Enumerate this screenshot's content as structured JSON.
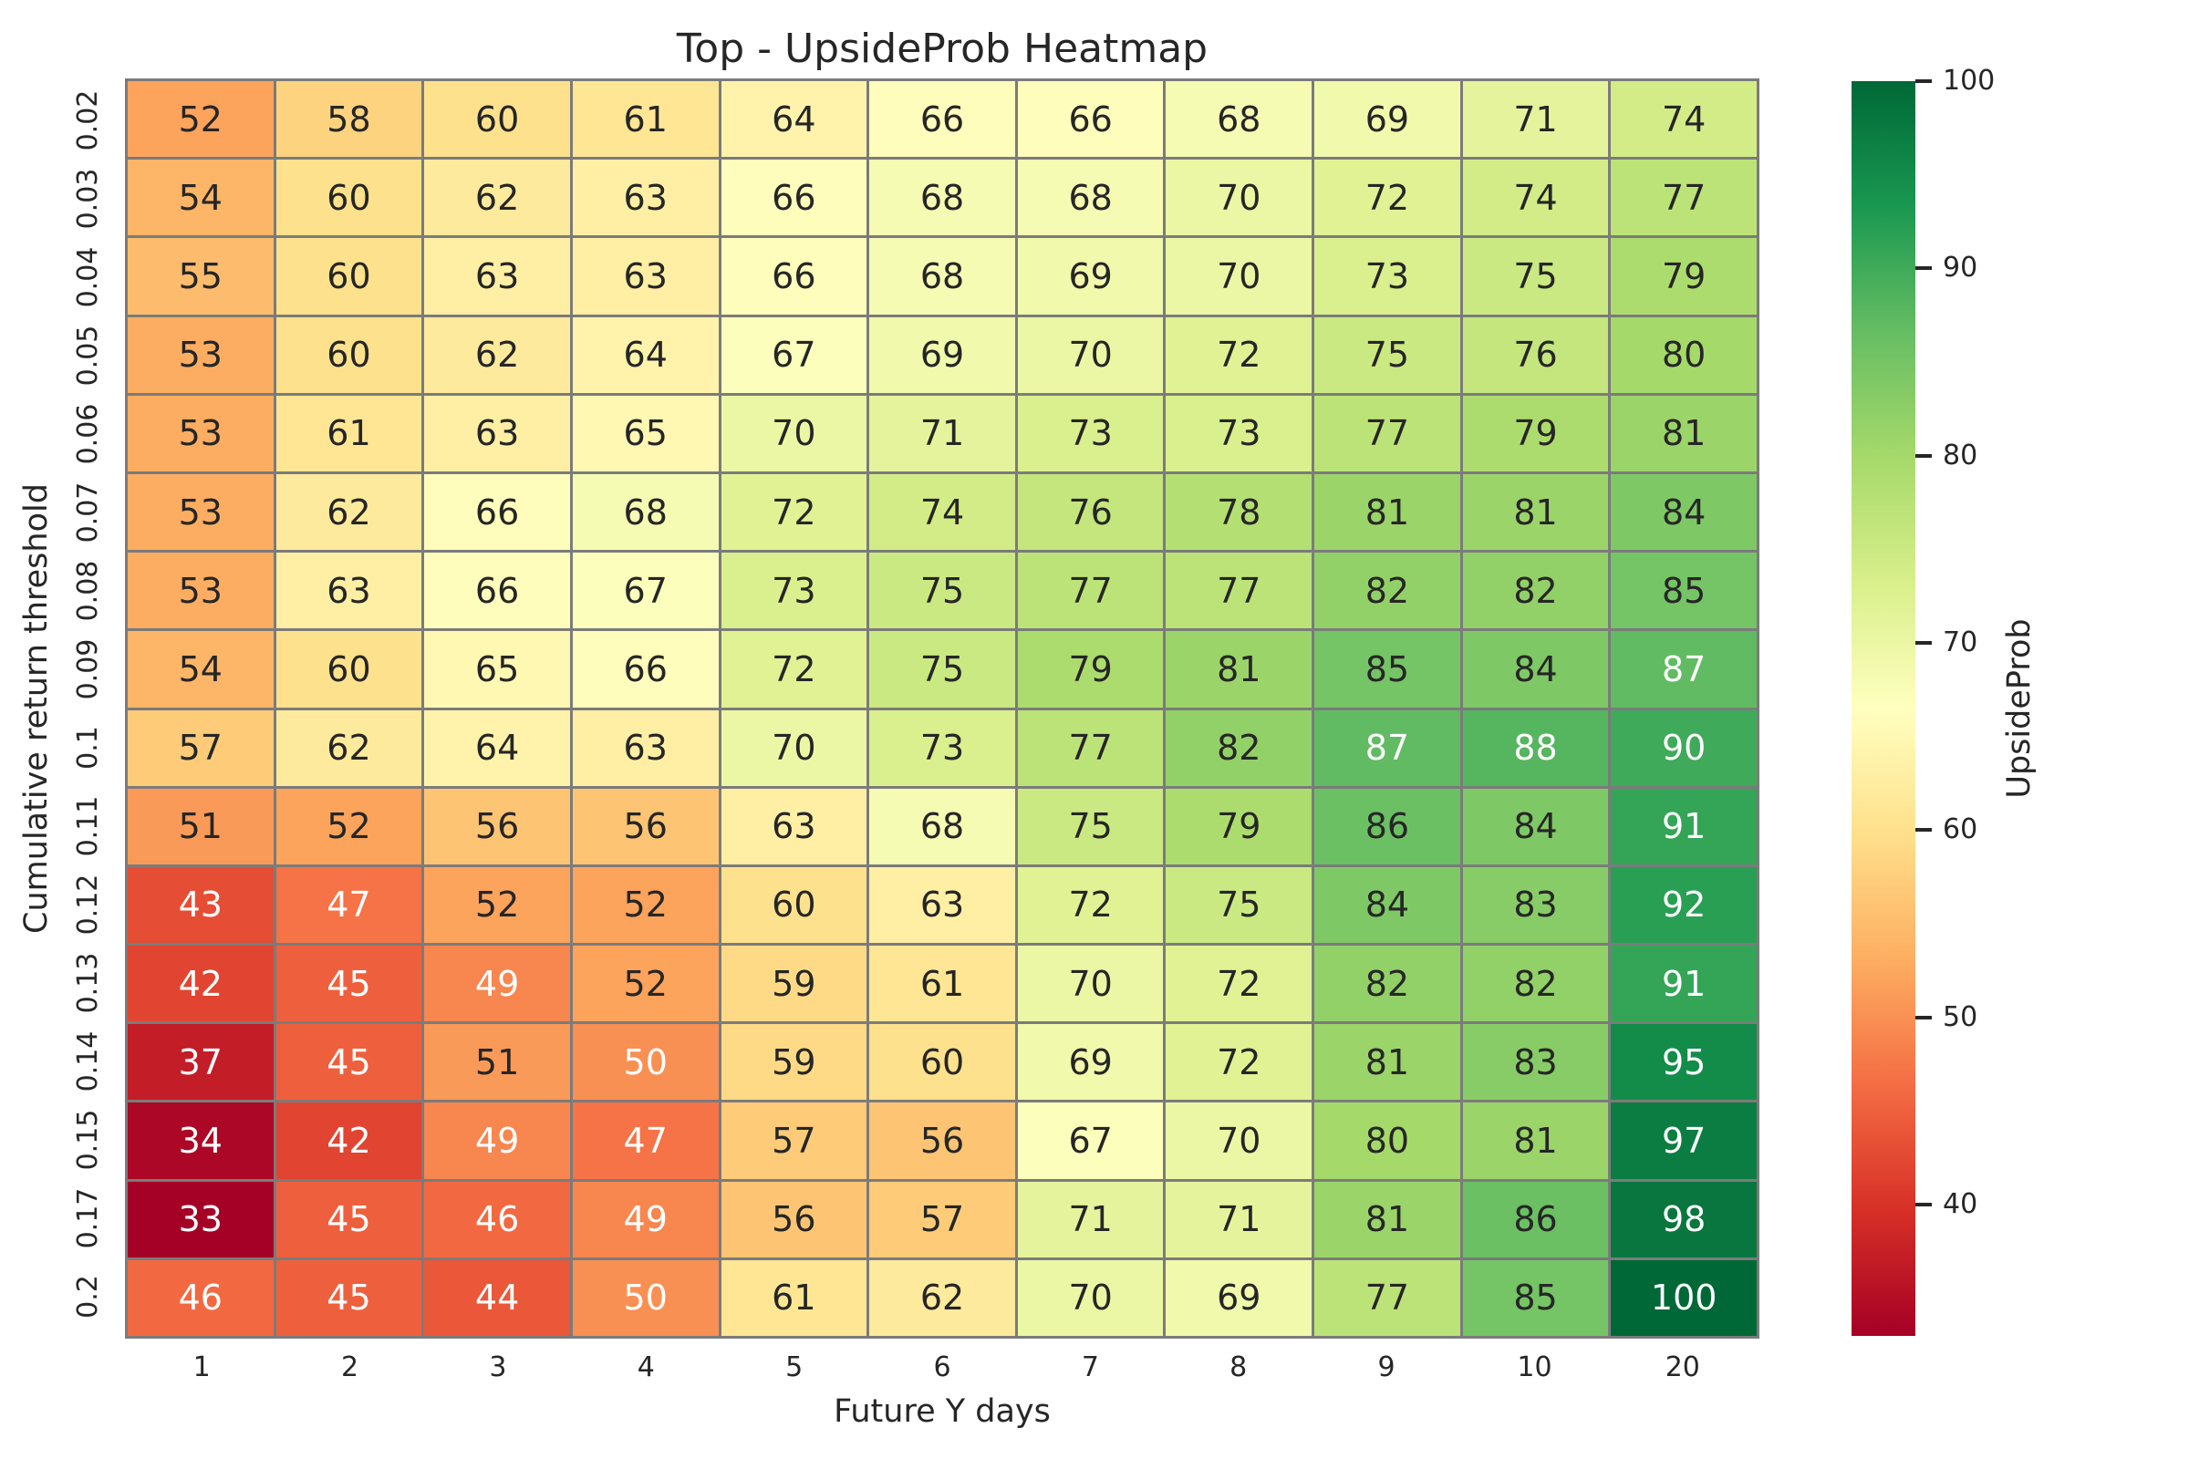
{
  "chart_data": {
    "type": "heatmap",
    "title": "Top - UpsideProb Heatmap",
    "xlabel": "Future Y days",
    "ylabel": "Cumulative return threshold",
    "x_categories": [
      "1",
      "2",
      "3",
      "4",
      "5",
      "6",
      "7",
      "8",
      "9",
      "10",
      "20"
    ],
    "y_categories": [
      "0.02",
      "0.03",
      "0.04",
      "0.05",
      "0.06",
      "0.07",
      "0.08",
      "0.09",
      "0.1",
      "0.11",
      "0.12",
      "0.13",
      "0.14",
      "0.15",
      "0.17",
      "0.2"
    ],
    "values": [
      [
        52,
        58,
        60,
        61,
        64,
        66,
        66,
        68,
        69,
        71,
        74
      ],
      [
        54,
        60,
        62,
        63,
        66,
        68,
        68,
        70,
        72,
        74,
        77
      ],
      [
        55,
        60,
        63,
        63,
        66,
        68,
        69,
        70,
        73,
        75,
        79
      ],
      [
        53,
        60,
        62,
        64,
        67,
        69,
        70,
        72,
        75,
        76,
        80
      ],
      [
        53,
        61,
        63,
        65,
        70,
        71,
        73,
        73,
        77,
        79,
        81
      ],
      [
        53,
        62,
        66,
        68,
        72,
        74,
        76,
        78,
        81,
        81,
        84
      ],
      [
        53,
        63,
        66,
        67,
        73,
        75,
        77,
        77,
        82,
        82,
        85
      ],
      [
        54,
        60,
        65,
        66,
        72,
        75,
        79,
        81,
        85,
        84,
        87
      ],
      [
        57,
        62,
        64,
        63,
        70,
        73,
        77,
        82,
        87,
        88,
        90
      ],
      [
        51,
        52,
        56,
        56,
        63,
        68,
        75,
        79,
        86,
        84,
        91
      ],
      [
        43,
        47,
        52,
        52,
        60,
        63,
        72,
        75,
        84,
        83,
        92
      ],
      [
        42,
        45,
        49,
        52,
        59,
        61,
        70,
        72,
        82,
        82,
        91
      ],
      [
        37,
        45,
        51,
        50,
        59,
        60,
        69,
        72,
        81,
        83,
        95
      ],
      [
        34,
        42,
        49,
        47,
        57,
        56,
        67,
        70,
        80,
        81,
        97
      ],
      [
        33,
        45,
        46,
        49,
        56,
        57,
        71,
        71,
        81,
        86,
        98
      ],
      [
        46,
        45,
        44,
        50,
        61,
        62,
        70,
        69,
        77,
        85,
        100
      ]
    ],
    "colormap": "RdYlGn",
    "vmin": 33,
    "vmax": 100,
    "annotated": true,
    "gridline_color": "#7b7b7b",
    "annotation_dark_color": "#262626",
    "annotation_light_color": "#ffffff",
    "legend_position": "right",
    "colorbar": {
      "label": "UpsideProb",
      "ticks": [
        100,
        90,
        80,
        70,
        60,
        50,
        40
      ]
    }
  }
}
